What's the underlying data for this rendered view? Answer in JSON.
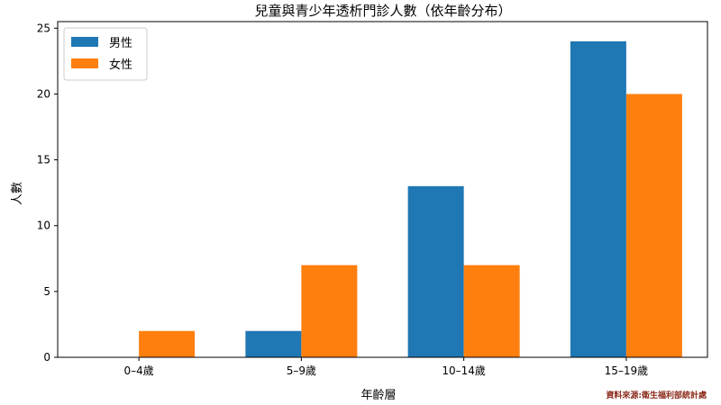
{
  "chart_data": {
    "type": "bar",
    "title": "兒童與青少年透析門診人數（依年齡分布）",
    "xlabel": "年齡層",
    "ylabel": "人數",
    "categories": [
      "0–4歲",
      "5–9歲",
      "10–14歲",
      "15–19歲"
    ],
    "series": [
      {
        "name": "男性",
        "values": [
          0,
          2,
          13,
          24
        ],
        "color": "#1f77b4"
      },
      {
        "name": "女性",
        "values": [
          2,
          7,
          7,
          20
        ],
        "color": "#ff7f0e"
      }
    ],
    "ylim": [
      0,
      25.5
    ],
    "yticks": [
      0,
      5,
      10,
      15,
      20,
      25
    ],
    "grid": false,
    "legend": "top-left",
    "source": "資料來源:衛生福利部統計處"
  }
}
